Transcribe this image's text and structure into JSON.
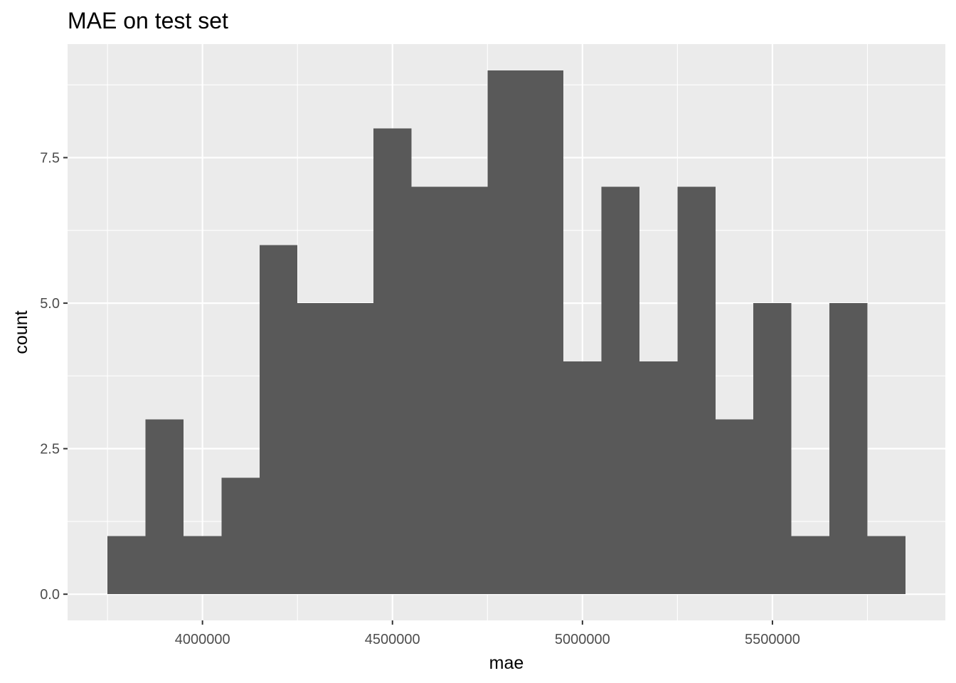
{
  "chart_data": {
    "type": "bar",
    "title": "MAE on test set",
    "xlabel": "mae",
    "ylabel": "count",
    "bins": [
      {
        "start": 3750000,
        "end": 3850000,
        "count": 1
      },
      {
        "start": 3850000,
        "end": 3950000,
        "count": 3
      },
      {
        "start": 3950000,
        "end": 4050000,
        "count": 1
      },
      {
        "start": 4050000,
        "end": 4150000,
        "count": 2
      },
      {
        "start": 4150000,
        "end": 4250000,
        "count": 6
      },
      {
        "start": 4250000,
        "end": 4350000,
        "count": 5
      },
      {
        "start": 4350000,
        "end": 4450000,
        "count": 5
      },
      {
        "start": 4450000,
        "end": 4550000,
        "count": 8
      },
      {
        "start": 4550000,
        "end": 4650000,
        "count": 7
      },
      {
        "start": 4650000,
        "end": 4750000,
        "count": 7
      },
      {
        "start": 4750000,
        "end": 4850000,
        "count": 9
      },
      {
        "start": 4850000,
        "end": 4950000,
        "count": 9
      },
      {
        "start": 4950000,
        "end": 5050000,
        "count": 4
      },
      {
        "start": 5050000,
        "end": 5150000,
        "count": 7
      },
      {
        "start": 5150000,
        "end": 5250000,
        "count": 4
      },
      {
        "start": 5250000,
        "end": 5350000,
        "count": 7
      },
      {
        "start": 5350000,
        "end": 5450000,
        "count": 3
      },
      {
        "start": 5450000,
        "end": 5550000,
        "count": 5
      },
      {
        "start": 5550000,
        "end": 5650000,
        "count": 1
      },
      {
        "start": 5650000,
        "end": 5750000,
        "count": 5
      },
      {
        "start": 5750000,
        "end": 5850000,
        "count": 1
      }
    ],
    "xlim": [
      3645000,
      5955000
    ],
    "ylim": [
      -0.45,
      9.45
    ],
    "x_ticks": [
      4000000,
      4500000,
      5000000,
      5500000
    ],
    "x_tick_labels": [
      "4000000",
      "4500000",
      "5000000",
      "5500000"
    ],
    "x_minor_breaks": [
      3750000,
      4250000,
      4750000,
      5250000,
      5750000
    ],
    "y_ticks": [
      0,
      2.5,
      5,
      7.5
    ],
    "y_tick_labels": [
      "0.0",
      "2.5",
      "5.0",
      "7.5"
    ],
    "y_minor_breaks": [
      1.25,
      3.75,
      6.25,
      8.75
    ],
    "grid": true,
    "colors": {
      "panel_background": "#ebebeb",
      "grid_line": "#ffffff",
      "bar_fill": "#595959",
      "tick_mark": "#333333"
    }
  }
}
